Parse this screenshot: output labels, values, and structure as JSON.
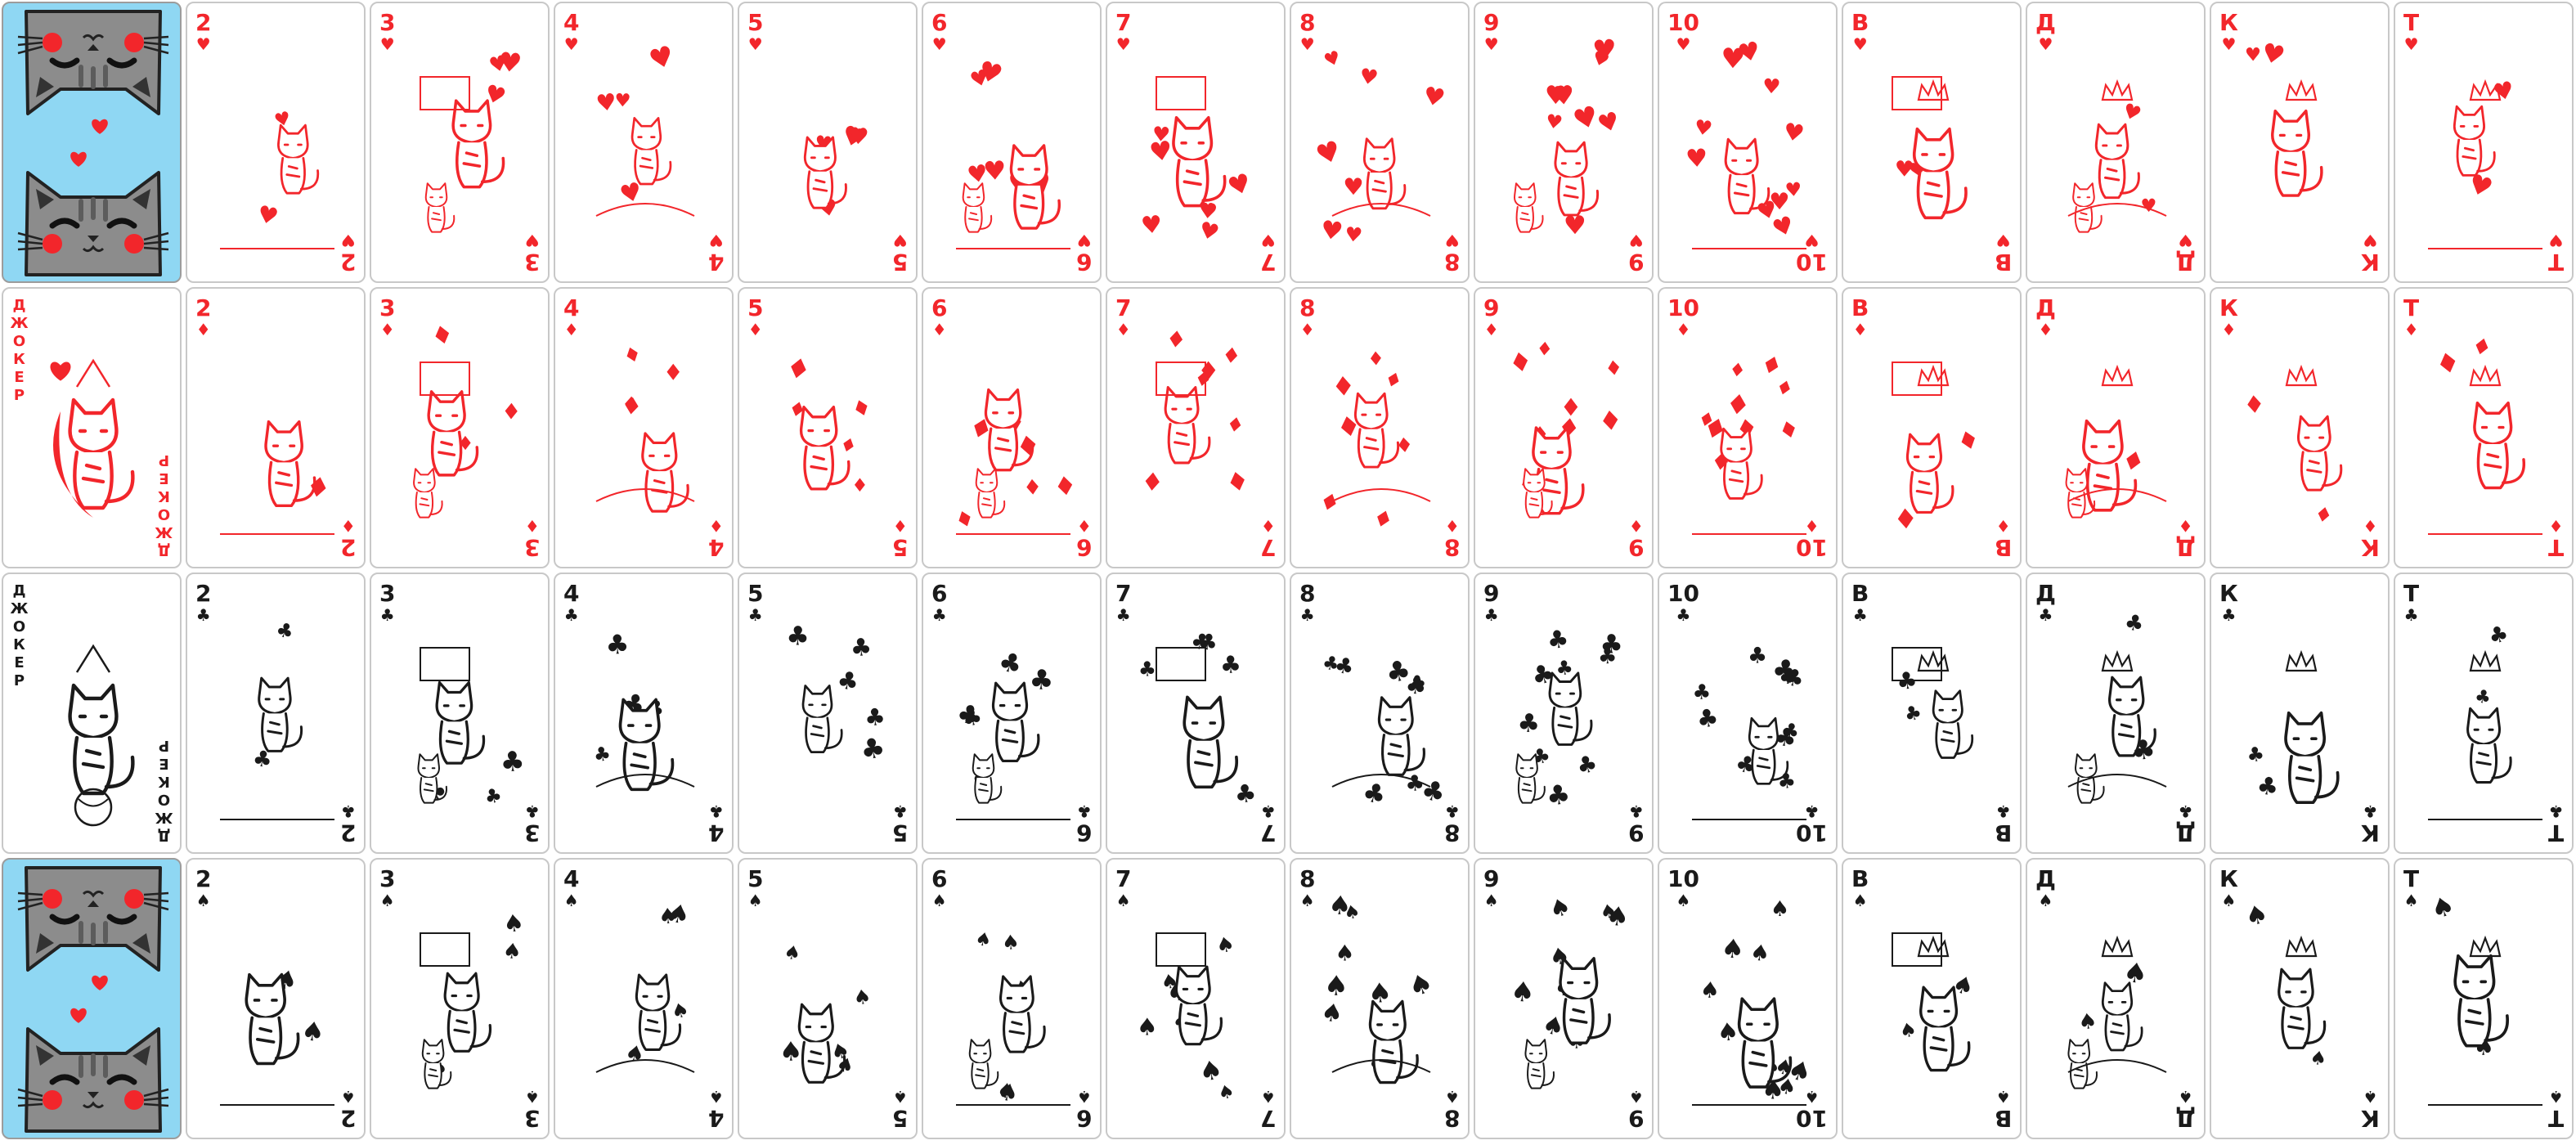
{
  "suits": {
    "hearts": {
      "symbol": "♥",
      "color": "#f2262b",
      "icon": "heart-icon"
    },
    "diamonds": {
      "symbol": "♦",
      "color": "#f2262b",
      "icon": "diamond-icon"
    },
    "clubs": {
      "symbol": "♣",
      "color": "#1a1a1a",
      "icon": "club-icon"
    },
    "spades": {
      "symbol": "♠",
      "color": "#1a1a1a",
      "icon": "spade-icon"
    }
  },
  "ranks": [
    "2",
    "3",
    "4",
    "5",
    "6",
    "7",
    "8",
    "9",
    "10",
    "В",
    "Д",
    "К",
    "Т"
  ],
  "rows": [
    {
      "lead": {
        "type": "back"
      },
      "suit": "hearts"
    },
    {
      "lead": {
        "type": "joker",
        "label": "ДЖОКЕР",
        "color": "#f2262b"
      },
      "suit": "diamonds"
    },
    {
      "lead": {
        "type": "joker",
        "label": "ДЖОКЕР",
        "color": "#1a1a1a"
      },
      "suit": "clubs"
    },
    {
      "lead": {
        "type": "back"
      },
      "suit": "spades"
    }
  ],
  "colors": {
    "back_background": "#8fd7f3",
    "cat_grey": "#8c8c8c",
    "cat_stripe": "#5c5c5c",
    "cheek": "#f2262b",
    "card_border": "#c8c8c8"
  }
}
